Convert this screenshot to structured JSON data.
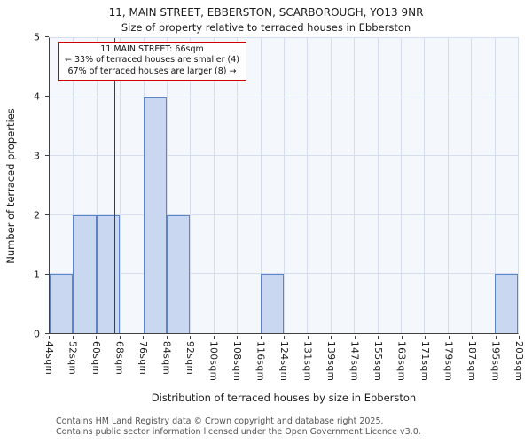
{
  "chart_data": {
    "type": "bar",
    "title": "11, MAIN STREET, EBBERSTON, SCARBOROUGH, YO13 9NR",
    "subtitle": "Size of property relative to terraced houses in Ebberston",
    "xlabel": "Distribution of terraced houses by size in Ebberston",
    "ylabel": "Number of terraced properties",
    "ylim": [
      0,
      5
    ],
    "yticks": [
      0,
      1,
      2,
      3,
      4,
      5
    ],
    "categories": [
      "44sqm",
      "52sqm",
      "60sqm",
      "68sqm",
      "76sqm",
      "84sqm",
      "92sqm",
      "100sqm",
      "108sqm",
      "116sqm",
      "124sqm",
      "131sqm",
      "139sqm",
      "147sqm",
      "155sqm",
      "163sqm",
      "171sqm",
      "179sqm",
      "187sqm",
      "195sqm",
      "203sqm"
    ],
    "values": [
      1,
      2,
      2,
      0,
      4,
      2,
      0,
      0,
      0,
      1,
      0,
      0,
      0,
      0,
      0,
      0,
      0,
      0,
      0,
      1
    ],
    "marker": {
      "value": 66,
      "label": "66sqm"
    },
    "annotation": {
      "line1": "11 MAIN STREET: 66sqm",
      "line2": "← 33% of terraced houses are smaller (4)",
      "line3": "67% of terraced houses are larger (8) →"
    },
    "colors": {
      "bar_fill": "#c9d7f0",
      "bar_edge": "#5b85c8",
      "grid": "#d5ddee",
      "plot_bg": "#f4f7fc",
      "marker_line": "#cc0000"
    }
  },
  "footer": {
    "line1": "Contains HM Land Registry data © Crown copyright and database right 2025.",
    "line2": "Contains public sector information licensed under the Open Government Licence v3.0."
  }
}
